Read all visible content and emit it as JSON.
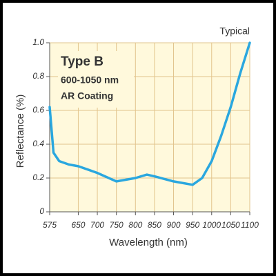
{
  "chart_data": {
    "type": "line",
    "title": "Typical",
    "annotations": [
      "Type B",
      "600-1050 nm",
      "AR Coating"
    ],
    "x_label": "Wavelength (nm)",
    "y_label": "Reflectance (%)",
    "x": [
      575,
      585,
      600,
      625,
      650,
      700,
      750,
      800,
      830,
      850,
      900,
      950,
      975,
      1000,
      1025,
      1050,
      1075,
      1100
    ],
    "series": [
      {
        "color": "#2aa7df",
        "values": [
          0.62,
          0.35,
          0.3,
          0.28,
          0.27,
          0.23,
          0.18,
          0.2,
          0.22,
          0.21,
          0.18,
          0.16,
          0.2,
          0.3,
          0.45,
          0.62,
          0.82,
          1.0
        ]
      }
    ],
    "xlim": [
      575,
      1100
    ],
    "xticks": [
      575,
      650,
      700,
      750,
      800,
      850,
      900,
      950,
      1000,
      1050,
      1100
    ],
    "ylim": [
      0,
      1.0
    ],
    "yticks": [
      0,
      0.2,
      0.4,
      0.6,
      0.8,
      {
        "value": 1.0,
        "label": "1.0"
      }
    ],
    "grid": true
  }
}
